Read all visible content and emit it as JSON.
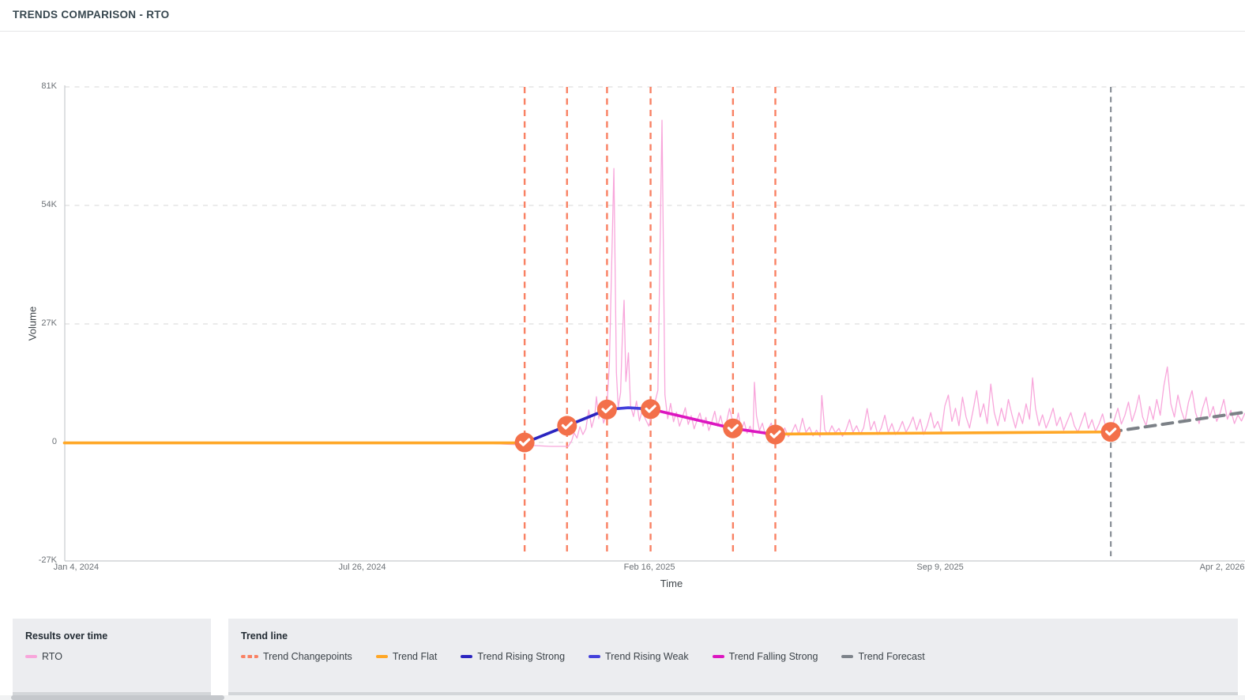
{
  "header": {
    "title": "TRENDS COMPARISON - RTO"
  },
  "chart_data": {
    "type": "line",
    "xlabel": "Time",
    "ylabel": "Volume",
    "ylim": [
      -27,
      81
    ],
    "grid": "dashed-horizontal",
    "y_ticks": [
      {
        "label": "81K",
        "value": 81
      },
      {
        "label": "54K",
        "value": 54
      },
      {
        "label": "27K",
        "value": 27
      },
      {
        "label": "0",
        "value": 0
      },
      {
        "label": "-27K",
        "value": -27
      }
    ],
    "x_ticks": [
      {
        "label": "Jan 4, 2024",
        "f": 0.0
      },
      {
        "label": "Jul 26, 2024",
        "f": 0.25
      },
      {
        "label": "Feb 16, 2025",
        "f": 0.494
      },
      {
        "label": "Sep 9, 2025",
        "f": 0.741
      },
      {
        "label": "Apr 2, 2026",
        "f": 0.989
      }
    ],
    "series": [
      {
        "name": "RTO",
        "color": "#F8A6DB",
        "unit": "K",
        "points": [
          [
            0,
            -0.1
          ],
          [
            0.05,
            -0.1
          ],
          [
            0.1,
            -0.1
          ],
          [
            0.15,
            -0.1
          ],
          [
            0.2,
            -0.1
          ],
          [
            0.25,
            -0.1
          ],
          [
            0.3,
            -0.1
          ],
          [
            0.35,
            -0.1
          ],
          [
            0.388,
            -0.6
          ],
          [
            0.41,
            -0.9
          ],
          [
            0.425,
            -0.9
          ],
          [
            0.428,
            0.4
          ],
          [
            0.43,
            2.2
          ],
          [
            0.4325,
            1
          ],
          [
            0.435,
            3.6
          ],
          [
            0.4375,
            1.8
          ],
          [
            0.44,
            3.1
          ],
          [
            0.4425,
            7.4
          ],
          [
            0.445,
            3.4
          ],
          [
            0.4475,
            5.9
          ],
          [
            0.449,
            10.4
          ],
          [
            0.451,
            5.4
          ],
          [
            0.453,
            8.4
          ],
          [
            0.455,
            4.4
          ],
          [
            0.4575,
            6.4
          ],
          [
            0.46,
            17.9
          ],
          [
            0.4638,
            62.4
          ],
          [
            0.466,
            15.9
          ],
          [
            0.4675,
            7.9
          ],
          [
            0.4695,
            11.4
          ],
          [
            0.471,
            23.9
          ],
          [
            0.4725,
            32.4
          ],
          [
            0.474,
            13.9
          ],
          [
            0.4762,
            20.4
          ],
          [
            0.478,
            8.4
          ],
          [
            0.4805,
            5.9
          ],
          [
            0.483,
            9.4
          ],
          [
            0.4855,
            4.9
          ],
          [
            0.488,
            7.4
          ],
          [
            0.4905,
            5.4
          ],
          [
            0.4935,
            3.7
          ],
          [
            0.496,
            6.4
          ],
          [
            0.4985,
            8.9
          ],
          [
            0.5012,
            11.9
          ],
          [
            0.5047,
            73.4
          ],
          [
            0.5072,
            10.9
          ],
          [
            0.5095,
            5.4
          ],
          [
            0.512,
            8.9
          ],
          [
            0.5145,
            4.7
          ],
          [
            0.517,
            6.9
          ],
          [
            0.5195,
            3.7
          ],
          [
            0.522,
            5.7
          ],
          [
            0.5245,
            7.9
          ],
          [
            0.527,
            4.1
          ],
          [
            0.5295,
            6.1
          ],
          [
            0.532,
            3.1
          ],
          [
            0.5345,
            5.1
          ],
          [
            0.537,
            6.7
          ],
          [
            0.5395,
            3.7
          ],
          [
            0.542,
            5.7
          ],
          [
            0.5445,
            2.7
          ],
          [
            0.547,
            4.7
          ],
          [
            0.5495,
            7.1
          ],
          [
            0.552,
            3.7
          ],
          [
            0.5545,
            6.1
          ],
          [
            0.557,
            3.1
          ],
          [
            0.5595,
            4.7
          ],
          [
            0.562,
            7.7
          ],
          [
            0.5645,
            5.1
          ],
          [
            0.567,
            3.4
          ],
          [
            0.5695,
            6.7
          ],
          [
            0.572,
            2.7
          ],
          [
            0.5745,
            4.7
          ],
          [
            0.577,
            2.1
          ],
          [
            0.5795,
            3.7
          ],
          [
            0.582,
            1.4
          ],
          [
            0.5832,
            13.7
          ],
          [
            0.585,
            6.1
          ],
          [
            0.5875,
            2.7
          ],
          [
            0.59,
            4.4
          ],
          [
            0.5925,
            1.7
          ],
          [
            0.595,
            3.1
          ],
          [
            0.5975,
            4.4
          ],
          [
            0.6,
            1.9
          ],
          [
            0.603,
            3.1
          ],
          [
            0.606,
            1.7
          ],
          [
            0.609,
            3.3
          ],
          [
            0.612,
            1.3
          ],
          [
            0.615,
            2.3
          ],
          [
            0.618,
            4.1
          ],
          [
            0.621,
            1.8
          ],
          [
            0.624,
            5.5
          ],
          [
            0.627,
            2.3
          ],
          [
            0.63,
            3.5
          ],
          [
            0.633,
            1.5
          ],
          [
            0.636,
            2.8
          ],
          [
            0.639,
            1.3
          ],
          [
            0.6405,
            10.7
          ],
          [
            0.643,
            2.8
          ],
          [
            0.646,
            1.8
          ],
          [
            0.649,
            3.8
          ],
          [
            0.652,
            2.2
          ],
          [
            0.655,
            3.2
          ],
          [
            0.658,
            1.4
          ],
          [
            0.661,
            2.8
          ],
          [
            0.664,
            5.2
          ],
          [
            0.667,
            2.3
          ],
          [
            0.67,
            3.8
          ],
          [
            0.673,
            1.8
          ],
          [
            0.676,
            3.3
          ],
          [
            0.679,
            7.7
          ],
          [
            0.682,
            2.8
          ],
          [
            0.685,
            4.8
          ],
          [
            0.688,
            1.8
          ],
          [
            0.691,
            3.3
          ],
          [
            0.694,
            6.2
          ],
          [
            0.697,
            2.3
          ],
          [
            0.7,
            4.3
          ],
          [
            0.703,
            1.8
          ],
          [
            0.706,
            2.8
          ],
          [
            0.709,
            4.8
          ],
          [
            0.712,
            2.3
          ],
          [
            0.715,
            3.8
          ],
          [
            0.718,
            5.8
          ],
          [
            0.721,
            2.8
          ],
          [
            0.724,
            5.3
          ],
          [
            0.727,
            1.8
          ],
          [
            0.73,
            3.8
          ],
          [
            0.733,
            6.8
          ],
          [
            0.736,
            3.3
          ],
          [
            0.739,
            4.8
          ],
          [
            0.742,
            2.3
          ],
          [
            0.745,
            8.3
          ],
          [
            0.748,
            10.8
          ],
          [
            0.751,
            4.8
          ],
          [
            0.754,
            7.8
          ],
          [
            0.757,
            3.8
          ],
          [
            0.76,
            10.3
          ],
          [
            0.763,
            5.8
          ],
          [
            0.766,
            3.3
          ],
          [
            0.769,
            7.3
          ],
          [
            0.772,
            11.8
          ],
          [
            0.775,
            5.8
          ],
          [
            0.778,
            8.8
          ],
          [
            0.781,
            4.3
          ],
          [
            0.784,
            13.3
          ],
          [
            0.787,
            6.8
          ],
          [
            0.79,
            3.8
          ],
          [
            0.793,
            7.8
          ],
          [
            0.796,
            4.8
          ],
          [
            0.799,
            9.8
          ],
          [
            0.802,
            6.3
          ],
          [
            0.805,
            3.3
          ],
          [
            0.808,
            6.8
          ],
          [
            0.811,
            4.3
          ],
          [
            0.814,
            8.8
          ],
          [
            0.817,
            5.3
          ],
          [
            0.8195,
            14.7
          ],
          [
            0.822,
            7.8
          ],
          [
            0.825,
            3.8
          ],
          [
            0.828,
            6.3
          ],
          [
            0.831,
            3.3
          ],
          [
            0.834,
            5.3
          ],
          [
            0.837,
            7.8
          ],
          [
            0.84,
            3.8
          ],
          [
            0.843,
            5.8
          ],
          [
            0.846,
            2.8
          ],
          [
            0.849,
            4.8
          ],
          [
            0.852,
            6.8
          ],
          [
            0.855,
            3.8
          ],
          [
            0.858,
            2.3
          ],
          [
            0.861,
            4.5
          ],
          [
            0.864,
            6.8
          ],
          [
            0.867,
            3.2
          ],
          [
            0.87,
            5.2
          ],
          [
            0.873,
            2.5
          ],
          [
            0.876,
            4.2
          ],
          [
            0.879,
            6.5
          ],
          [
            0.882,
            3.2
          ],
          [
            0.8856,
            2.2
          ],
          [
            0.889,
            5.2
          ],
          [
            0.892,
            7.8
          ],
          [
            0.895,
            4.2
          ],
          [
            0.898,
            6.2
          ],
          [
            0.901,
            9.2
          ],
          [
            0.904,
            4.8
          ],
          [
            0.907,
            7.2
          ],
          [
            0.91,
            10.8
          ],
          [
            0.913,
            5.8
          ],
          [
            0.916,
            3.8
          ],
          [
            0.919,
            8.2
          ],
          [
            0.922,
            5.2
          ],
          [
            0.925,
            9.8
          ],
          [
            0.928,
            6.2
          ],
          [
            0.931,
            12.8
          ],
          [
            0.934,
            17.2
          ],
          [
            0.937,
            8.8
          ],
          [
            0.94,
            5.8
          ],
          [
            0.943,
            10.8
          ],
          [
            0.946,
            7.2
          ],
          [
            0.949,
            4.8
          ],
          [
            0.952,
            9.2
          ],
          [
            0.955,
            11.8
          ],
          [
            0.958,
            6.8
          ],
          [
            0.961,
            4.3
          ],
          [
            0.964,
            7.8
          ],
          [
            0.967,
            10.3
          ],
          [
            0.97,
            5.8
          ],
          [
            0.973,
            8.2
          ],
          [
            0.976,
            4.8
          ],
          [
            0.979,
            6.8
          ],
          [
            0.982,
            9.8
          ],
          [
            0.985,
            5.3
          ],
          [
            0.988,
            7.3
          ],
          [
            0.991,
            4.3
          ],
          [
            0.994,
            6.3
          ],
          [
            0.997,
            4.9
          ],
          [
            1,
            6.7
          ]
        ]
      }
    ],
    "trend": {
      "segments": [
        {
          "kind": "flat",
          "color": "#FFA726",
          "dashed": false,
          "points": [
            [
              -0.003,
              -0.1
            ],
            [
              0.388,
              -0.1
            ]
          ]
        },
        {
          "kind": "rising-strong",
          "color": "#2B25C0",
          "dashed": false,
          "points": [
            [
              0.388,
              -0.1
            ],
            [
              0.424,
              3.8
            ],
            [
              0.458,
              7.5
            ]
          ]
        },
        {
          "kind": "rising-weak",
          "color": "#4340DB",
          "dashed": false,
          "points": [
            [
              0.458,
              7.5
            ],
            [
              0.476,
              7.9
            ],
            [
              0.495,
              7.6
            ]
          ]
        },
        {
          "kind": "falling-strong",
          "color": "#DC16C0",
          "dashed": false,
          "points": [
            [
              0.495,
              7.6
            ],
            [
              0.565,
              3.2
            ],
            [
              0.601,
              1.8
            ]
          ]
        },
        {
          "kind": "flat",
          "color": "#FFA726",
          "dashed": false,
          "points": [
            [
              0.601,
              1.9
            ],
            [
              0.886,
              2.4
            ]
          ]
        },
        {
          "kind": "forecast",
          "color": "#7C8187",
          "dashed": true,
          "points": [
            [
              0.886,
              2.4
            ],
            [
              1.0,
              6.9
            ]
          ]
        }
      ]
    },
    "changepoints": {
      "line_color": "#F98163",
      "marker_color": "#F3704A",
      "fracs": [
        0.388,
        0.424,
        0.458,
        0.495,
        0.565,
        0.601
      ],
      "markers": [
        [
          0.388,
          0
        ],
        [
          0.424,
          3.8
        ],
        [
          0.458,
          7.5
        ],
        [
          0.495,
          7.6
        ],
        [
          0.565,
          3.2
        ],
        [
          0.601,
          1.8
        ],
        [
          0.886,
          2.4
        ]
      ]
    },
    "forecast_start": {
      "f": 0.886,
      "line_color": "#8A9097"
    }
  },
  "legend": {
    "results_panel": {
      "title": "Results over time",
      "items": [
        {
          "label": "RTO",
          "color": "#F8A6DB",
          "swatch": "solid"
        }
      ]
    },
    "trend_panel": {
      "title": "Trend line",
      "items": [
        {
          "label": "Trend Changepoints",
          "color": "#F98163",
          "swatch": "dashed"
        },
        {
          "label": "Trend Flat",
          "color": "#FFA726",
          "swatch": "solid"
        },
        {
          "label": "Trend Rising Strong",
          "color": "#2B25C0",
          "swatch": "solid"
        },
        {
          "label": "Trend Rising Weak",
          "color": "#4340DB",
          "swatch": "solid"
        },
        {
          "label": "Trend Falling Strong",
          "color": "#DC16C0",
          "swatch": "solid"
        },
        {
          "label": "Trend Forecast",
          "color": "#7D838A",
          "swatch": "solid"
        }
      ]
    }
  }
}
